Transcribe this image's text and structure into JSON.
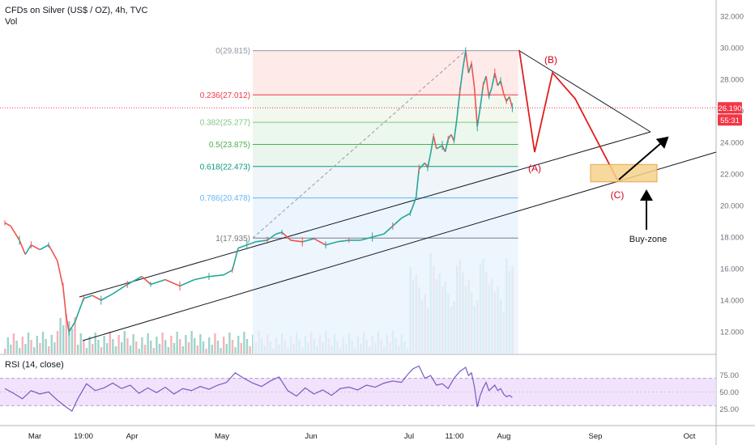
{
  "header": {
    "title": "CFDs on Silver (US$ / OZ), 4h, TVC",
    "volume_label": "Vol",
    "rsi_label": "RSI (14, close)"
  },
  "price_badges": {
    "last_price": "26.190",
    "countdown": "55:31",
    "color": "#f23645"
  },
  "chart_data": {
    "type": "line",
    "instrument": "CFDs on Silver (US$ / OZ)",
    "timeframe": "4h",
    "y_axis": {
      "ticks": [
        "32.000",
        "30.000",
        "28.000",
        "26.000",
        "24.000",
        "22.000",
        "20.000",
        "18.000",
        "16.000",
        "14.000",
        "12.000"
      ],
      "ylim": [
        11,
        33
      ]
    },
    "x_axis": {
      "ticks": [
        "Mar",
        "19:00",
        "Apr",
        "May",
        "Jun",
        "Jul",
        "11:00",
        "Aug",
        "Sep",
        "Oct"
      ]
    },
    "rsi_axis": {
      "ticks": [
        "75.00",
        "50.00",
        "25.00"
      ],
      "band": [
        30,
        70
      ],
      "ylim": [
        15,
        92
      ]
    },
    "price_series": [
      {
        "t": 0,
        "v": 18.9
      },
      {
        "t": 2,
        "v": 18.7
      },
      {
        "t": 5,
        "v": 17.8
      },
      {
        "t": 7,
        "v": 16.9
      },
      {
        "t": 9,
        "v": 17.5
      },
      {
        "t": 12,
        "v": 17.2
      },
      {
        "t": 15,
        "v": 17.5
      },
      {
        "t": 18,
        "v": 16.5
      },
      {
        "t": 20,
        "v": 14.8
      },
      {
        "t": 21,
        "v": 13.0
      },
      {
        "t": 22,
        "v": 12.0
      },
      {
        "t": 24,
        "v": 12.6
      },
      {
        "t": 27,
        "v": 14.1
      },
      {
        "t": 30,
        "v": 14.3
      },
      {
        "t": 33,
        "v": 14.0
      },
      {
        "t": 37,
        "v": 14.4
      },
      {
        "t": 42,
        "v": 15.0
      },
      {
        "t": 47,
        "v": 15.5
      },
      {
        "t": 50,
        "v": 15.0
      },
      {
        "t": 55,
        "v": 15.3
      },
      {
        "t": 60,
        "v": 14.9
      },
      {
        "t": 65,
        "v": 15.3
      },
      {
        "t": 70,
        "v": 15.5
      },
      {
        "t": 75,
        "v": 15.6
      },
      {
        "t": 78,
        "v": 15.9
      },
      {
        "t": 80,
        "v": 17.3
      },
      {
        "t": 83,
        "v": 17.5
      },
      {
        "t": 86,
        "v": 17.7
      },
      {
        "t": 90,
        "v": 17.8
      },
      {
        "t": 93,
        "v": 18.2
      },
      {
        "t": 95,
        "v": 18.3
      },
      {
        "t": 98,
        "v": 17.8
      },
      {
        "t": 102,
        "v": 17.7
      },
      {
        "t": 106,
        "v": 17.9
      },
      {
        "t": 110,
        "v": 17.5
      },
      {
        "t": 114,
        "v": 17.7
      },
      {
        "t": 118,
        "v": 17.8
      },
      {
        "t": 122,
        "v": 17.8
      },
      {
        "t": 126,
        "v": 18.0
      },
      {
        "t": 130,
        "v": 18.2
      },
      {
        "t": 133,
        "v": 18.7
      },
      {
        "t": 136,
        "v": 19.2
      },
      {
        "t": 139,
        "v": 19.5
      },
      {
        "t": 141,
        "v": 20.5
      },
      {
        "t": 142,
        "v": 22.3
      },
      {
        "t": 144,
        "v": 22.7
      },
      {
        "t": 145,
        "v": 22.4
      },
      {
        "t": 146,
        "v": 23.3
      },
      {
        "t": 147,
        "v": 24.4
      },
      {
        "t": 148,
        "v": 23.6
      },
      {
        "t": 150,
        "v": 23.8
      },
      {
        "t": 151,
        "v": 23.4
      },
      {
        "t": 152,
        "v": 24.2
      },
      {
        "t": 153,
        "v": 24.5
      },
      {
        "t": 154,
        "v": 24.1
      },
      {
        "t": 155,
        "v": 25.5
      },
      {
        "t": 156,
        "v": 27.2
      },
      {
        "t": 157,
        "v": 28.6
      },
      {
        "t": 158,
        "v": 29.8
      },
      {
        "t": 159,
        "v": 28.4
      },
      {
        "t": 160,
        "v": 29.0
      },
      {
        "t": 161,
        "v": 27.5
      },
      {
        "t": 162,
        "v": 25.0
      },
      {
        "t": 163,
        "v": 26.2
      },
      {
        "t": 164,
        "v": 27.6
      },
      {
        "t": 165,
        "v": 28.2
      },
      {
        "t": 166,
        "v": 26.9
      },
      {
        "t": 167,
        "v": 27.5
      },
      {
        "t": 168,
        "v": 28.4
      },
      {
        "t": 169,
        "v": 27.6
      },
      {
        "t": 170,
        "v": 27.9
      },
      {
        "t": 171,
        "v": 27.1
      },
      {
        "t": 172,
        "v": 26.6
      },
      {
        "t": 173,
        "v": 26.9
      },
      {
        "t": 174,
        "v": 26.2
      }
    ],
    "rsi_series": [
      {
        "t": 0,
        "v": 55
      },
      {
        "t": 3,
        "v": 48
      },
      {
        "t": 6,
        "v": 40
      },
      {
        "t": 9,
        "v": 52
      },
      {
        "t": 12,
        "v": 47
      },
      {
        "t": 15,
        "v": 50
      },
      {
        "t": 18,
        "v": 38
      },
      {
        "t": 21,
        "v": 28
      },
      {
        "t": 23,
        "v": 22
      },
      {
        "t": 25,
        "v": 40
      },
      {
        "t": 28,
        "v": 62
      },
      {
        "t": 31,
        "v": 52
      },
      {
        "t": 34,
        "v": 56
      },
      {
        "t": 37,
        "v": 63
      },
      {
        "t": 40,
        "v": 55
      },
      {
        "t": 43,
        "v": 60
      },
      {
        "t": 46,
        "v": 48
      },
      {
        "t": 49,
        "v": 56
      },
      {
        "t": 52,
        "v": 49
      },
      {
        "t": 55,
        "v": 57
      },
      {
        "t": 58,
        "v": 47
      },
      {
        "t": 61,
        "v": 55
      },
      {
        "t": 64,
        "v": 52
      },
      {
        "t": 67,
        "v": 58
      },
      {
        "t": 70,
        "v": 54
      },
      {
        "t": 73,
        "v": 60
      },
      {
        "t": 76,
        "v": 64
      },
      {
        "t": 79,
        "v": 78
      },
      {
        "t": 82,
        "v": 70
      },
      {
        "t": 85,
        "v": 63
      },
      {
        "t": 88,
        "v": 58
      },
      {
        "t": 91,
        "v": 66
      },
      {
        "t": 94,
        "v": 72
      },
      {
        "t": 97,
        "v": 52
      },
      {
        "t": 100,
        "v": 44
      },
      {
        "t": 103,
        "v": 56
      },
      {
        "t": 106,
        "v": 47
      },
      {
        "t": 109,
        "v": 53
      },
      {
        "t": 112,
        "v": 45
      },
      {
        "t": 115,
        "v": 55
      },
      {
        "t": 118,
        "v": 57
      },
      {
        "t": 121,
        "v": 53
      },
      {
        "t": 124,
        "v": 60
      },
      {
        "t": 127,
        "v": 57
      },
      {
        "t": 130,
        "v": 63
      },
      {
        "t": 133,
        "v": 66
      },
      {
        "t": 136,
        "v": 64
      },
      {
        "t": 138,
        "v": 75
      },
      {
        "t": 140,
        "v": 84
      },
      {
        "t": 142,
        "v": 88
      },
      {
        "t": 144,
        "v": 70
      },
      {
        "t": 146,
        "v": 74
      },
      {
        "t": 148,
        "v": 60
      },
      {
        "t": 150,
        "v": 62
      },
      {
        "t": 152,
        "v": 55
      },
      {
        "t": 154,
        "v": 70
      },
      {
        "t": 156,
        "v": 80
      },
      {
        "t": 158,
        "v": 86
      },
      {
        "t": 159,
        "v": 74
      },
      {
        "t": 160,
        "v": 78
      },
      {
        "t": 161,
        "v": 58
      },
      {
        "t": 162,
        "v": 28
      },
      {
        "t": 163,
        "v": 45
      },
      {
        "t": 164,
        "v": 56
      },
      {
        "t": 165,
        "v": 64
      },
      {
        "t": 166,
        "v": 52
      },
      {
        "t": 167,
        "v": 56
      },
      {
        "t": 168,
        "v": 60
      },
      {
        "t": 169,
        "v": 52
      },
      {
        "t": 170,
        "v": 55
      },
      {
        "t": 171,
        "v": 47
      },
      {
        "t": 172,
        "v": 43
      },
      {
        "t": 173,
        "v": 45
      },
      {
        "t": 174,
        "v": 42
      }
    ],
    "volume_bars": 175,
    "fibonacci": [
      {
        "label": "0(29.815)",
        "price": 29.815,
        "color": "#9598a1"
      },
      {
        "label": "0.236(27.012)",
        "price": 27.012,
        "color": "#f23645"
      },
      {
        "label": "0.382(25.277)",
        "price": 25.277,
        "color": "#81c784"
      },
      {
        "label": "0.5(23.875)",
        "price": 23.875,
        "color": "#4caf50"
      },
      {
        "label": "0.618(22.473)",
        "price": 22.473,
        "color": "#089981"
      },
      {
        "label": "0.786(20.478)",
        "price": 20.478,
        "color": "#64b5f6"
      },
      {
        "label": "1(17.935)",
        "price": 17.935,
        "color": "#787b86"
      }
    ],
    "annotations": {
      "wave_a": "(A)",
      "wave_b": "(B)",
      "wave_c": "(C)",
      "buy_zone": "Buy-zone",
      "buy_zone_range": [
        21.5,
        22.6
      ],
      "current_price": 26.19
    }
  },
  "colors": {
    "wave_line": "#e01e1e",
    "rsi_line": "#7e57c2",
    "rsi_band": "#ecdcfa",
    "vol_up": "#9fd4cc",
    "vol_down": "#f6b3b8",
    "candle_up": "#26a69a",
    "candle_down": "#ef5350"
  }
}
